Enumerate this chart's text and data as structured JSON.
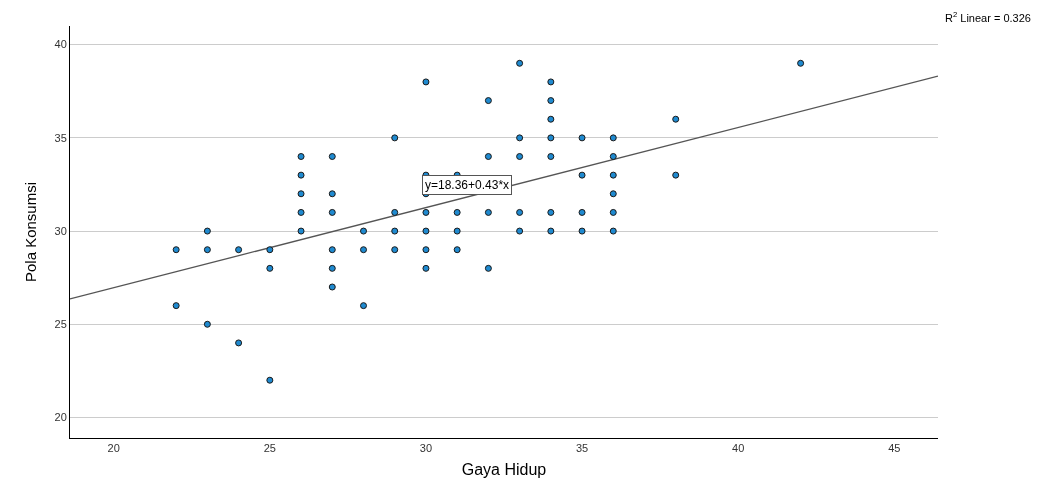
{
  "chart_data": {
    "type": "scatter",
    "xlabel": "Gaya Hidup",
    "ylabel": "Pola Konsumsi",
    "xlim": [
      18.6,
      46.4
    ],
    "xticks": [
      20,
      25,
      30,
      35,
      40,
      45
    ],
    "ylim": [
      18.9,
      41
    ],
    "yticks": [
      20,
      25,
      30,
      35,
      40
    ],
    "grid": "y",
    "marker": "circle",
    "annotations": [
      "R$^{2}$ Linear = 0.326",
      "y=18.36+0.43*x"
    ],
    "series": [
      {
        "color": "#1f8ad0",
        "x": [
          22,
          22,
          23,
          23,
          23,
          24,
          24,
          25,
          25,
          25,
          26,
          26,
          26,
          26,
          26,
          27,
          27,
          27,
          27,
          27,
          27,
          28,
          28,
          28,
          29,
          29,
          29,
          29,
          30,
          30,
          30,
          30,
          30,
          30,
          30,
          31,
          31,
          31,
          31,
          32,
          32,
          32,
          32,
          33,
          33,
          33,
          33,
          33,
          34,
          34,
          34,
          34,
          34,
          34,
          34,
          35,
          35,
          35,
          35,
          36,
          36,
          36,
          36,
          36,
          36,
          38,
          38,
          42
        ],
        "values": [
          29,
          26,
          30,
          29,
          25,
          29,
          24,
          29,
          28,
          22,
          34,
          33,
          32,
          31,
          30,
          34,
          32,
          31,
          29,
          28,
          27,
          30,
          29,
          26,
          35,
          31,
          30,
          29,
          38,
          33,
          32,
          31,
          30,
          29,
          28,
          33,
          31,
          30,
          29,
          37,
          34,
          31,
          28,
          39,
          35,
          34,
          31,
          30,
          38,
          37,
          36,
          35,
          34,
          31,
          30,
          35,
          33,
          31,
          30,
          35,
          34,
          33,
          32,
          31,
          30,
          36,
          33,
          39
        ]
      },
      {
        "type": "line",
        "marker": "none",
        "color": "#555555",
        "x": [
          18.6,
          46.4
        ],
        "values": [
          26.36,
          38.31
        ]
      }
    ]
  }
}
